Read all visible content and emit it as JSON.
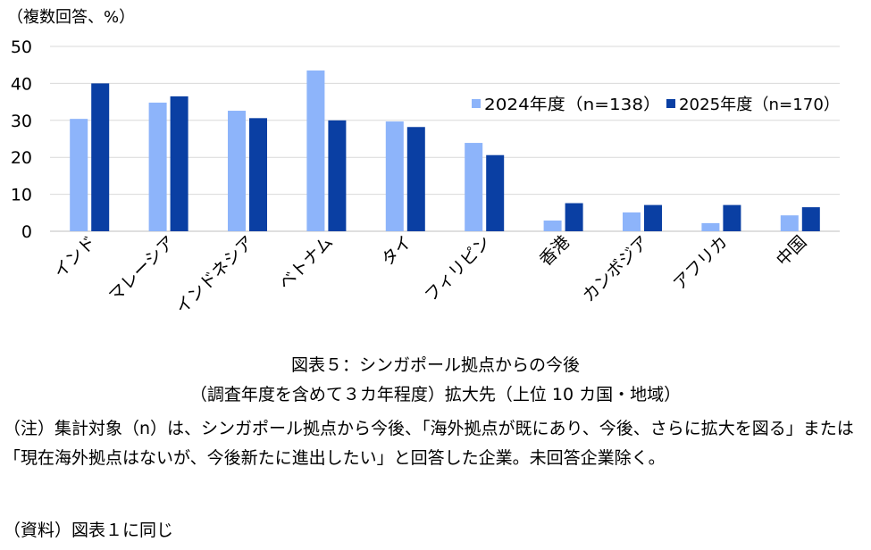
{
  "chart_data": {
    "type": "bar",
    "unit_label": "（複数回答、%）",
    "categories": [
      "インド",
      "マレーシア",
      "インドネシア",
      "ベトナム",
      "タイ",
      "フィリピン",
      "香港",
      "カンボジア",
      "アフリカ",
      "中国"
    ],
    "series": [
      {
        "name": "2024年度（n=138）",
        "color": "#8db4fa",
        "values": [
          30.4,
          34.8,
          32.6,
          43.5,
          29.7,
          23.9,
          2.9,
          5.1,
          2.2,
          4.3
        ]
      },
      {
        "name": "2025年度（n=170）",
        "color": "#0a3fa3",
        "values": [
          40.0,
          36.5,
          30.6,
          30.0,
          28.2,
          20.6,
          7.6,
          7.1,
          7.1,
          6.5
        ]
      }
    ],
    "ylim": [
      0,
      50
    ],
    "yticks": [
      0,
      10,
      20,
      30,
      40,
      50
    ],
    "grid": true,
    "legend_position": "top-right"
  },
  "caption": {
    "line1": "図表５：シンガポール拠点からの今後",
    "line2": "（調査年度を含めて３カ年程度）拡大先（上位 10 カ国・地域）"
  },
  "notes": {
    "note": "（注）集計対象（n）は、シンガポール拠点から今後、「海外拠点が既にあり、今後、さらに拡大を図る」または「現在海外拠点はないが、今後新たに進出したい」と回答した企業。未回答企業除く。",
    "source": "（資料）図表１に同じ"
  }
}
